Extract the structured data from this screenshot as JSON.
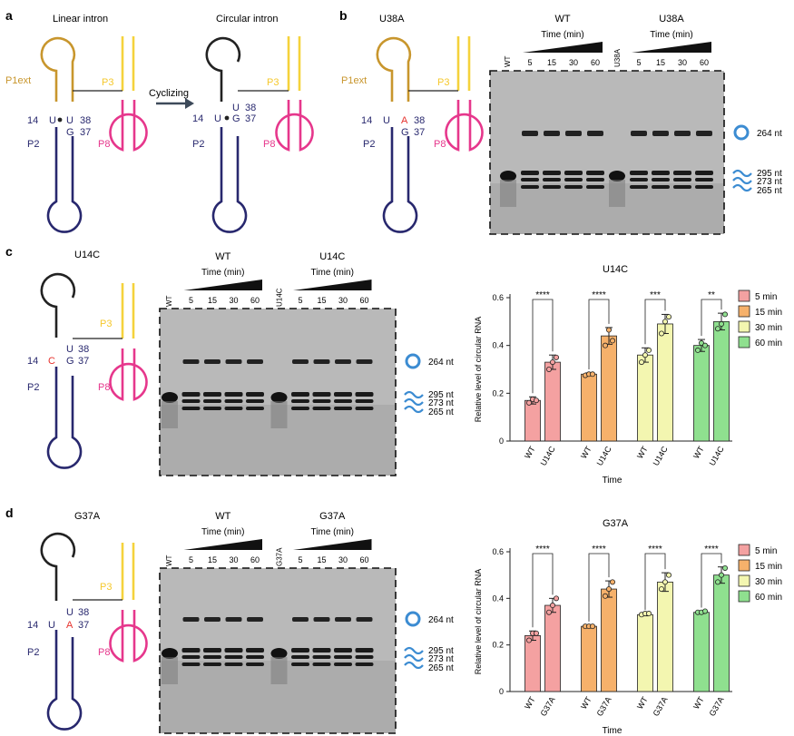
{
  "panels": {
    "a": {
      "letter": "a",
      "linear_title": "Linear intron",
      "circular_title": "Circular intron",
      "arrow_label": "Cyclizing",
      "p1ext": "P1ext",
      "p3": "P3",
      "p2": "P2",
      "p8": "P8",
      "n14": "14",
      "n38": "38",
      "n37": "37",
      "u": "U",
      "g": "G"
    },
    "b": {
      "letter": "b",
      "title": "U38A",
      "mut_base": "A",
      "gel": {
        "group_wt": "WT",
        "group_mut": "U38A",
        "time_label": "Time (min)",
        "lane_wt": "WT",
        "lane_mut": "U38A",
        "times": [
          "5",
          "15",
          "30",
          "60"
        ]
      }
    },
    "c": {
      "letter": "c",
      "title": "U14C",
      "mut_base": "C",
      "gel": {
        "group_wt": "WT",
        "group_mut": "U14C",
        "time_label": "Time (min)",
        "lane_wt": "WT",
        "lane_mut": "U14C",
        "times": [
          "5",
          "15",
          "30",
          "60"
        ]
      },
      "chart_title": "U14C"
    },
    "d": {
      "letter": "d",
      "title": "G37A",
      "mut_base": "A",
      "gel": {
        "group_wt": "WT",
        "group_mut": "G37A",
        "time_label": "Time (min)",
        "lane_wt": "WT",
        "lane_mut": "G37A",
        "times": [
          "5",
          "15",
          "30",
          "60"
        ]
      },
      "chart_title": "G37A"
    }
  },
  "bands": {
    "circ": "264 nt",
    "b1": "295 nt",
    "b2": "273 nt",
    "b3": "265 nt"
  },
  "colors": {
    "navy": "#28286e",
    "gold": "#c8962d",
    "yellow": "#f5d23c",
    "magenta": "#e6378c",
    "red": "#e6322d",
    "blue_circle": "#3c8cd2",
    "bar_5": "#f4a1a1",
    "bar_15": "#f6b16b",
    "bar_30": "#f3f6b0",
    "bar_60": "#8fe08f"
  },
  "chart_data": [
    {
      "type": "bar",
      "title": "U14C",
      "ylabel": "Relative level of circular RNA",
      "xlabel": "Time",
      "ylim": [
        0,
        0.6
      ],
      "yticks": [
        "0",
        "0.2",
        "0.4",
        "0.6"
      ],
      "categories": [
        "WT",
        "U14C",
        "WT",
        "U14C",
        "WT",
        "U14C",
        "WT",
        "U14C"
      ],
      "groups": [
        "5  min",
        "15 min",
        "30 min",
        "60 min"
      ],
      "values": [
        0.17,
        0.33,
        0.28,
        0.44,
        0.36,
        0.49,
        0.4,
        0.5
      ],
      "errors": [
        0.015,
        0.03,
        0.005,
        0.035,
        0.03,
        0.04,
        0.025,
        0.035
      ],
      "points": [
        [
          0.16,
          0.175,
          0.17
        ],
        [
          0.3,
          0.33,
          0.35
        ],
        [
          0.275,
          0.28,
          0.28
        ],
        [
          0.4,
          0.465,
          0.42
        ],
        [
          0.33,
          0.36,
          0.38
        ],
        [
          0.45,
          0.5,
          0.52
        ],
        [
          0.38,
          0.41,
          0.4
        ],
        [
          0.47,
          0.49,
          0.53
        ]
      ],
      "significance": [
        "****",
        "****",
        "***",
        "**"
      ],
      "legend": [
        "5  min",
        "15 min",
        "30 min",
        "60 min"
      ],
      "legend_placement": "right"
    },
    {
      "type": "bar",
      "title": "G37A",
      "ylabel": "Relative level of circular RNA",
      "xlabel": "Time",
      "ylim": [
        0,
        0.6
      ],
      "yticks": [
        "0",
        "0.2",
        "0.4",
        "0.6"
      ],
      "categories": [
        "WT",
        "G37A",
        "WT",
        "G37A",
        "WT",
        "G37A",
        "WT",
        "G37A"
      ],
      "groups": [
        "5  min",
        "15 min",
        "30 min",
        "60 min"
      ],
      "values": [
        0.24,
        0.37,
        0.28,
        0.44,
        0.33,
        0.47,
        0.34,
        0.5
      ],
      "errors": [
        0.02,
        0.03,
        0.005,
        0.035,
        0.005,
        0.04,
        0.005,
        0.035
      ],
      "points": [
        [
          0.22,
          0.25,
          0.25
        ],
        [
          0.34,
          0.37,
          0.4
        ],
        [
          0.28,
          0.28,
          0.28
        ],
        [
          0.41,
          0.44,
          0.47
        ],
        [
          0.33,
          0.335,
          0.335
        ],
        [
          0.44,
          0.47,
          0.5
        ],
        [
          0.34,
          0.34,
          0.345
        ],
        [
          0.47,
          0.5,
          0.53
        ]
      ],
      "significance": [
        "****",
        "****",
        "****",
        "****"
      ],
      "legend": [
        "5  min",
        "15 min",
        "30 min",
        "60 min"
      ],
      "legend_placement": "right"
    }
  ]
}
